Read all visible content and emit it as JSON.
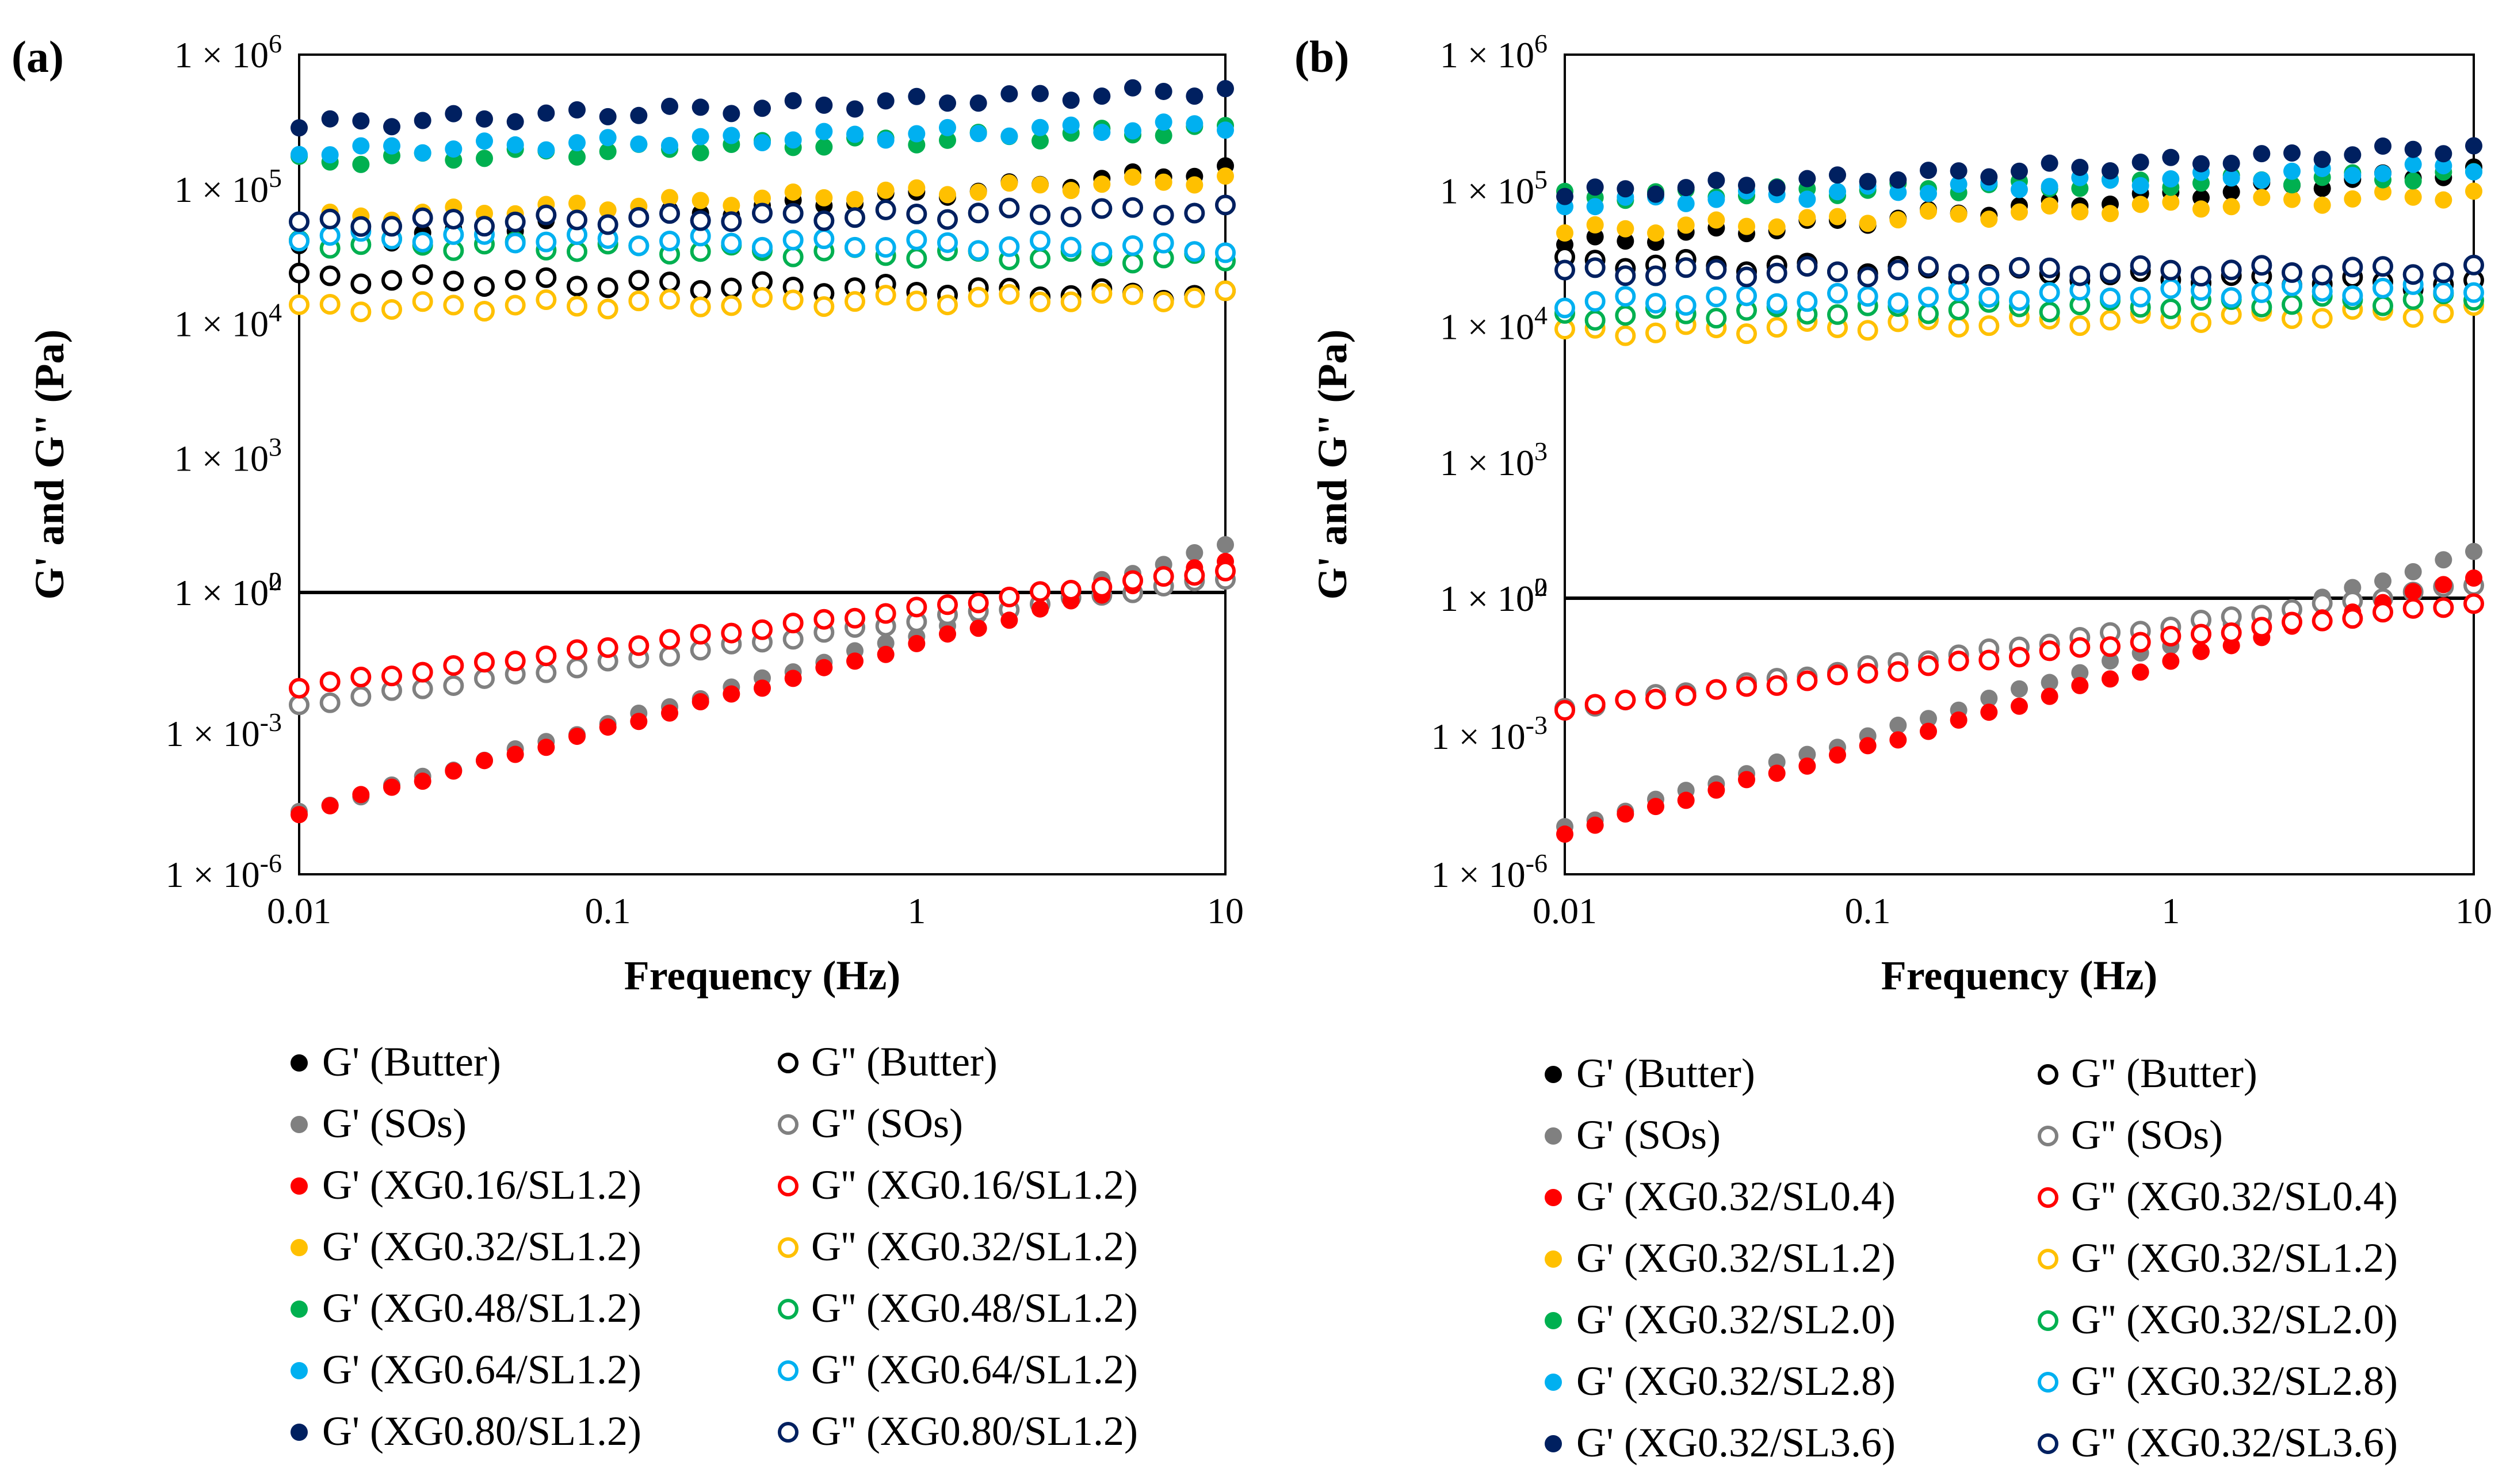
{
  "chart_data": [
    {
      "type": "scatter",
      "panel_label": "(a)",
      "xlabel": "Frequency (Hz)",
      "ylabel": "G' and G\" (Pa)",
      "x_scale": "log",
      "xlim": [
        0.01,
        10
      ],
      "x_ticks": [
        "0.01",
        "0.1",
        "1",
        "10"
      ],
      "upper_y_range": [
        100,
        1000000
      ],
      "upper_y_ticks": [
        "1 × 10^6",
        "1 × 10^5",
        "1 × 10^4",
        "1 × 10^3",
        "1 × 10^2"
      ],
      "lower_y_range": [
        1e-06,
        1
      ],
      "lower_y_ticks": [
        "1 × 10^0",
        "1 × 10^-3",
        "1 × 10^-6"
      ],
      "tick_parts": [
        {
          "base": "1 × 10",
          "exp": "6"
        },
        {
          "base": "1 × 10",
          "exp": "5"
        },
        {
          "base": "1 × 10",
          "exp": "4"
        },
        {
          "base": "1 × 10",
          "exp": "3"
        },
        {
          "base": "1 × 10",
          "exp": "2"
        },
        {
          "base": "1 × 10",
          "exp": "0"
        },
        {
          "base": "1 × 10",
          "exp": "-3"
        },
        {
          "base": "1 × 10",
          "exp": "-6"
        }
      ],
      "series": [
        {
          "name": "G' (Butter)",
          "filled": true,
          "color": "#000000",
          "start": 38000,
          "end": 140000
        },
        {
          "name": "G'' (Butter)",
          "filled": false,
          "color": "#000000",
          "start": 22000,
          "end": 16000
        },
        {
          "name": "G' (SOs)",
          "filled": true,
          "color": "#808080",
          "start": 2e-05,
          "end": 10
        },
        {
          "name": "G'' (SOs)",
          "filled": false,
          "color": "#808080",
          "start": 0.004,
          "end": 2
        },
        {
          "name": "G' (XG0.16/SL1.2)",
          "filled": true,
          "color": "#ff0000",
          "start": 2e-05,
          "end": 5
        },
        {
          "name": "G'' (XG0.16/SL1.2)",
          "filled": false,
          "color": "#ff0000",
          "start": 0.01,
          "end": 3
        },
        {
          "name": "G' (XG0.32/SL1.2)",
          "filled": true,
          "color": "#ffc000",
          "start": 60000,
          "end": 120000
        },
        {
          "name": "G'' (XG0.32/SL1.2)",
          "filled": false,
          "color": "#ffc000",
          "start": 13000,
          "end": 16000
        },
        {
          "name": "G' (XG0.48/SL1.2)",
          "filled": true,
          "color": "#00b050",
          "start": 160000,
          "end": 280000
        },
        {
          "name": "G'' (XG0.48/SL1.2)",
          "filled": false,
          "color": "#00b050",
          "start": 40000,
          "end": 30000
        },
        {
          "name": "G' (XG0.64/SL1.2)",
          "filled": true,
          "color": "#00b0f0",
          "start": 190000,
          "end": 300000
        },
        {
          "name": "G'' (XG0.64/SL1.2)",
          "filled": false,
          "color": "#00b0f0",
          "start": 45000,
          "end": 36000
        },
        {
          "name": "G' (XG0.80/SL1.2)",
          "filled": true,
          "color": "#002060",
          "start": 300000,
          "end": 550000
        },
        {
          "name": "G'' (XG0.80/SL1.2)",
          "filled": false,
          "color": "#002060",
          "start": 55000,
          "end": 70000
        }
      ]
    },
    {
      "type": "scatter",
      "panel_label": "(b)",
      "xlabel": "Frequency (Hz)",
      "ylabel": "G' and G\" (Pa)",
      "x_scale": "log",
      "xlim": [
        0.01,
        10
      ],
      "x_ticks": [
        "0.01",
        "0.1",
        "1",
        "10"
      ],
      "upper_y_range": [
        100,
        1000000
      ],
      "upper_y_ticks": [
        "1 × 10^6",
        "1 × 10^5",
        "1 × 10^4",
        "1 × 10^3",
        "1 × 10^2"
      ],
      "lower_y_range": [
        1e-06,
        1
      ],
      "lower_y_ticks": [
        "1 × 10^0",
        "1 × 10^-3",
        "1 × 10^-6"
      ],
      "tick_parts": [
        {
          "base": "1 × 10",
          "exp": "6"
        },
        {
          "base": "1 × 10",
          "exp": "5"
        },
        {
          "base": "1 × 10",
          "exp": "4"
        },
        {
          "base": "1 × 10",
          "exp": "3"
        },
        {
          "base": "1 × 10",
          "exp": "2"
        },
        {
          "base": "1 × 10",
          "exp": "0"
        },
        {
          "base": "1 × 10",
          "exp": "-3"
        },
        {
          "base": "1 × 10",
          "exp": "-6"
        }
      ],
      "series": [
        {
          "name": "G' (Butter)",
          "filled": true,
          "color": "#000000",
          "start": 40000,
          "end": 140000
        },
        {
          "name": "G'' (Butter)",
          "filled": false,
          "color": "#000000",
          "start": 30000,
          "end": 20000
        },
        {
          "name": "G' (SOs)",
          "filled": true,
          "color": "#808080",
          "start": 1e-05,
          "end": 10
        },
        {
          "name": "G'' (SOs)",
          "filled": false,
          "color": "#808080",
          "start": 0.004,
          "end": 2
        },
        {
          "name": "G' (XG0.32/SL0.4)",
          "filled": true,
          "color": "#ff0000",
          "start": 8e-06,
          "end": 3
        },
        {
          "name": "G'' (XG0.32/SL0.4)",
          "filled": false,
          "color": "#ff0000",
          "start": 0.004,
          "end": 0.8
        },
        {
          "name": "G' (XG0.32/SL1.2)",
          "filled": true,
          "color": "#ffc000",
          "start": 50000,
          "end": 95000
        },
        {
          "name": "G'' (XG0.32/SL1.2)",
          "filled": false,
          "color": "#ffc000",
          "start": 9000,
          "end": 13000
        },
        {
          "name": "G' (XG0.32/SL2.0)",
          "filled": true,
          "color": "#00b050",
          "start": 90000,
          "end": 130000
        },
        {
          "name": "G'' (XG0.32/SL2.0)",
          "filled": false,
          "color": "#00b050",
          "start": 12000,
          "end": 16000
        },
        {
          "name": "G' (XG0.32/SL2.8)",
          "filled": true,
          "color": "#00b0f0",
          "start": 80000,
          "end": 150000
        },
        {
          "name": "G'' (XG0.32/SL2.8)",
          "filled": false,
          "color": "#00b0f0",
          "start": 15000,
          "end": 19000
        },
        {
          "name": "G' (XG0.32/SL3.6)",
          "filled": true,
          "color": "#002060",
          "start": 95000,
          "end": 210000
        },
        {
          "name": "G'' (XG0.32/SL3.6)",
          "filled": false,
          "color": "#002060",
          "start": 25000,
          "end": 26000
        }
      ]
    }
  ]
}
